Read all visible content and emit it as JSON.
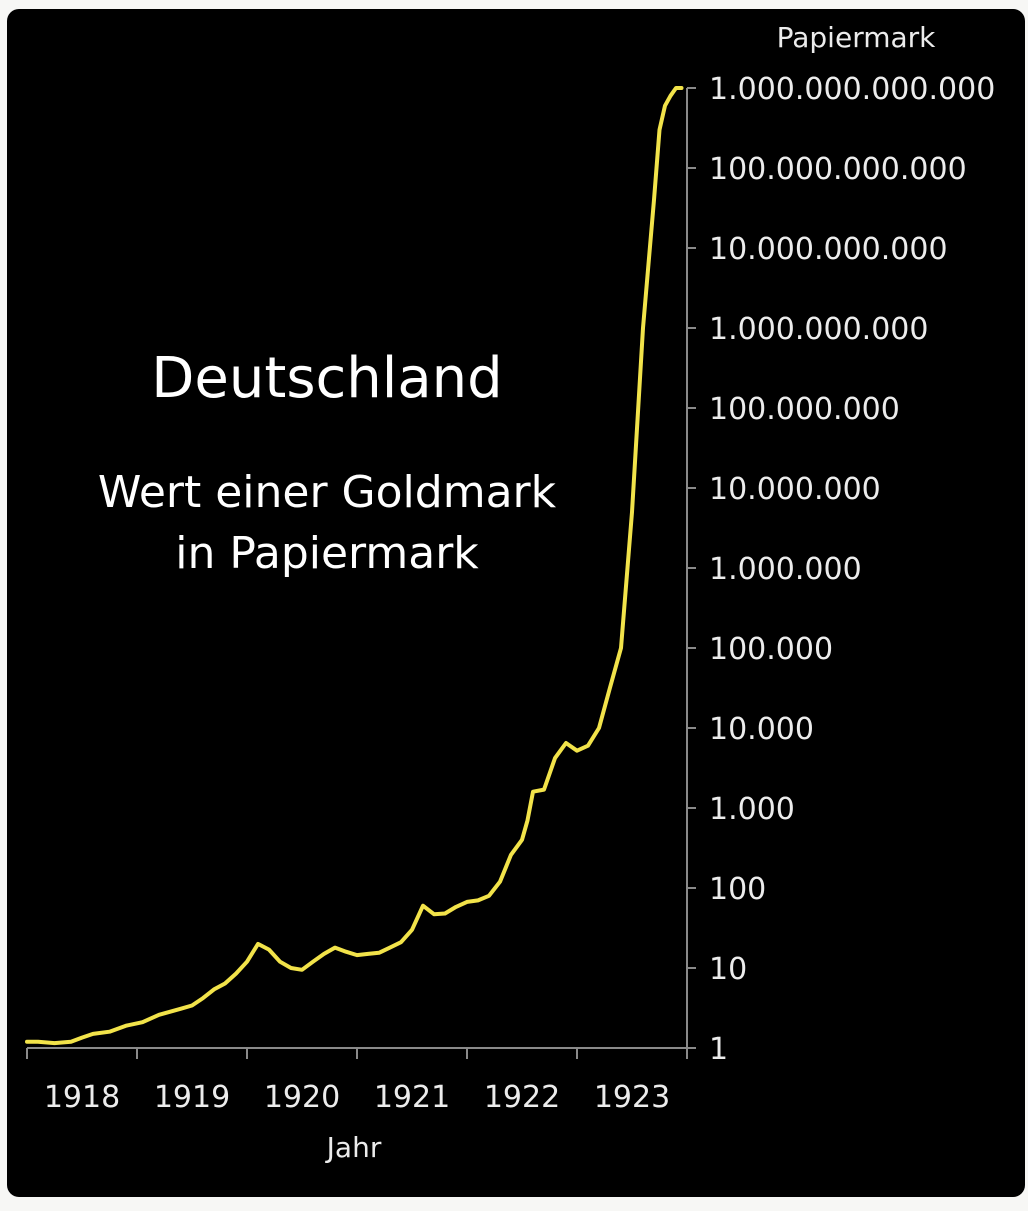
{
  "chart_data": {
    "type": "line",
    "title": "Deutschland",
    "subtitle_lines": [
      "Wert einer Goldmark",
      "in Papiermark"
    ],
    "xlabel": "Jahr",
    "ylabel": "Papiermark",
    "y_scale": "log10",
    "xlim": [
      1917.5,
      1923.5
    ],
    "ylim": [
      1,
      1000000000000
    ],
    "x_ticks": [
      1918,
      1919,
      1920,
      1921,
      1922,
      1923
    ],
    "y_ticks": [
      {
        "value": 1,
        "label": "1"
      },
      {
        "value": 10,
        "label": "10"
      },
      {
        "value": 100,
        "label": "100"
      },
      {
        "value": 1000,
        "label": "1.000"
      },
      {
        "value": 10000,
        "label": "10.000"
      },
      {
        "value": 100000,
        "label": "100.000"
      },
      {
        "value": 1000000,
        "label": "1.000.000"
      },
      {
        "value": 10000000,
        "label": "10.000.000"
      },
      {
        "value": 100000000,
        "label": "100.000.000"
      },
      {
        "value": 1000000000,
        "label": "1.000.000.000"
      },
      {
        "value": 10000000000,
        "label": "10.000.000.000"
      },
      {
        "value": 100000000000,
        "label": "100.000.000.000"
      },
      {
        "value": 1000000000000,
        "label": "1.000.000.000.000"
      }
    ],
    "line_color": "#f2e34a",
    "series": [
      {
        "x": [
          1917.5,
          1917.6,
          1917.75,
          1917.9,
          1918.0,
          1918.1,
          1918.25,
          1918.4,
          1918.55,
          1918.7,
          1918.9,
          1919.0,
          1919.1,
          1919.2,
          1919.3,
          1919.4,
          1919.5,
          1919.6,
          1919.7,
          1919.8,
          1919.9,
          1920.0,
          1920.1,
          1920.2,
          1920.3,
          1920.4,
          1920.5,
          1920.6,
          1920.7,
          1920.8,
          1920.9,
          1921.0,
          1921.1,
          1921.2,
          1921.3,
          1921.4,
          1921.5,
          1921.6,
          1921.7,
          1921.8,
          1921.9,
          1922.0,
          1922.05,
          1922.1,
          1922.2,
          1922.3,
          1922.4,
          1922.5,
          1922.6,
          1922.7,
          1922.8,
          1922.9,
          1923.0,
          1923.1,
          1923.2,
          1923.25,
          1923.3,
          1923.35,
          1923.4,
          1923.45
        ],
        "y": [
          1.2,
          1.2,
          1.15,
          1.2,
          1.35,
          1.5,
          1.6,
          1.9,
          2.1,
          2.6,
          3.1,
          3.4,
          4.2,
          5.4,
          6.4,
          8.5,
          12,
          20,
          17,
          12,
          10,
          9.5,
          12,
          15,
          18,
          16,
          14.5,
          15,
          15.5,
          18,
          21,
          30,
          60,
          47,
          48,
          58,
          67,
          70,
          80,
          120,
          260,
          400,
          700,
          1600,
          1700,
          4200,
          6500,
          5200,
          6000,
          10000,
          32000,
          100000,
          5000000,
          1000000000,
          40000000000,
          300000000000,
          600000000000,
          800000000000,
          1000000000000,
          1000000000000
        ]
      }
    ]
  }
}
